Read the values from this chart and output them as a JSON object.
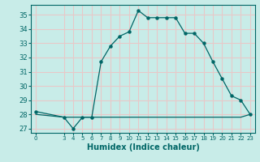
{
  "title": "",
  "xlabel": "Humidex (Indice chaleur)",
  "bg_color": "#c8ece8",
  "grid_color": "#e8c8c8",
  "line_color": "#006666",
  "marker_color": "#006666",
  "x_main": [
    0,
    3,
    4,
    5,
    6,
    7,
    8,
    9,
    10,
    11,
    12,
    13,
    14,
    15,
    16,
    17,
    18,
    19,
    20,
    21,
    22,
    23
  ],
  "y_main": [
    28.2,
    27.8,
    27.0,
    27.8,
    27.8,
    31.7,
    32.8,
    33.5,
    33.8,
    35.3,
    34.8,
    34.8,
    34.8,
    34.8,
    33.7,
    33.7,
    33.0,
    31.7,
    30.5,
    29.3,
    29.0,
    28.0
  ],
  "x_flat": [
    0,
    3,
    4,
    5,
    6,
    7,
    8,
    9,
    10,
    11,
    12,
    13,
    14,
    15,
    16,
    17,
    18,
    19,
    20,
    21,
    22,
    23
  ],
  "y_flat": [
    28.0,
    27.8,
    27.8,
    27.8,
    27.8,
    27.8,
    27.8,
    27.8,
    27.8,
    27.8,
    27.8,
    27.8,
    27.8,
    27.8,
    27.8,
    27.8,
    27.8,
    27.8,
    27.8,
    27.8,
    27.8,
    28.0
  ],
  "xlim": [
    -0.5,
    23.5
  ],
  "ylim": [
    26.7,
    35.7
  ],
  "yticks": [
    27,
    28,
    29,
    30,
    31,
    32,
    33,
    34,
    35
  ],
  "xticks": [
    0,
    3,
    4,
    5,
    6,
    7,
    8,
    9,
    10,
    11,
    12,
    13,
    14,
    15,
    16,
    17,
    18,
    19,
    20,
    21,
    22,
    23
  ],
  "spine_color": "#006666"
}
